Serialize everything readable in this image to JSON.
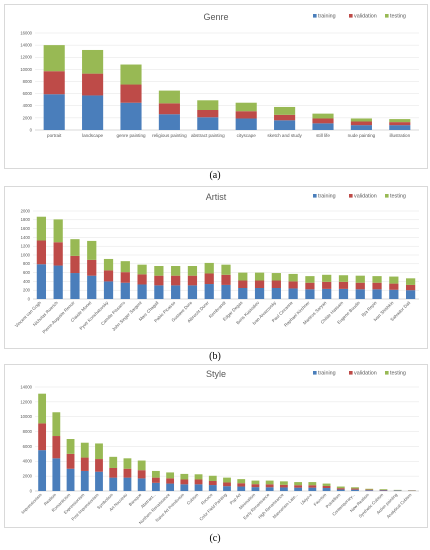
{
  "captions": {
    "a": "(a)",
    "b": "(b)",
    "c": "(c)"
  },
  "colors": {
    "training": "#4a7ebb",
    "validation": "#be4b48",
    "testing": "#98b954",
    "grid": "#e3e3e3",
    "text": "#595959"
  },
  "chart_data": [
    {
      "type": "bar",
      "stacked": true,
      "title": "Genre",
      "legend": "top-right",
      "grid": true,
      "ylim": [
        0,
        16000
      ],
      "yticks": [
        0,
        2000,
        4000,
        6000,
        8000,
        10000,
        12000,
        14000,
        16000
      ],
      "categories": [
        "portrait",
        "landscape",
        "genre painting",
        "religious painting",
        "abstract painting",
        "cityscape",
        "sketch and study",
        "still life",
        "nude painting",
        "illustration"
      ],
      "series": [
        {
          "name": "training",
          "values": [
            5900,
            5700,
            4500,
            2600,
            2100,
            1900,
            1600,
            1100,
            800,
            800
          ]
        },
        {
          "name": "validation",
          "values": [
            3800,
            3600,
            3000,
            1800,
            1200,
            1200,
            900,
            800,
            600,
            500
          ]
        },
        {
          "name": "testing",
          "values": [
            4300,
            3900,
            3300,
            2100,
            1600,
            1400,
            1300,
            800,
            500,
            500
          ]
        }
      ]
    },
    {
      "type": "bar",
      "stacked": true,
      "title": "Artist",
      "legend": "top-right",
      "grid": true,
      "ylim": [
        0,
        2000
      ],
      "yticks": [
        0,
        200,
        400,
        600,
        800,
        1000,
        1200,
        1400,
        1600,
        1800,
        2000
      ],
      "categories": [
        "Vincent van Gogh",
        "Nicholas Roerich",
        "Pierre-Auguste Renoir",
        "Claude Monet",
        "Pyotr Konchalovsky",
        "Camille Pissarro",
        "John Singer Sargent",
        "Marc Chagall",
        "Pablo Picasso",
        "Gustave Dore",
        "Albrecht Durer",
        "Rembrandt",
        "Edgar Degas",
        "Boris Kustodiev",
        "Ivan Aivazovsky",
        "Paul Cezanne",
        "Raphael Kirchner",
        "Martiros Saryan",
        "Childe Hassam",
        "Eugene Boudin",
        "Ilya Repin",
        "Ivan Shishkin",
        "Salvador Dali"
      ],
      "series": [
        {
          "name": "training",
          "values": [
            790,
            760,
            590,
            530,
            400,
            370,
            330,
            310,
            310,
            310,
            340,
            320,
            250,
            250,
            250,
            240,
            220,
            230,
            230,
            220,
            220,
            210,
            200
          ]
        },
        {
          "name": "validation",
          "values": [
            540,
            530,
            390,
            360,
            250,
            240,
            230,
            220,
            220,
            220,
            240,
            230,
            170,
            170,
            170,
            160,
            150,
            160,
            160,
            150,
            150,
            140,
            120
          ]
        },
        {
          "name": "testing",
          "values": [
            540,
            520,
            380,
            430,
            260,
            250,
            220,
            220,
            220,
            220,
            240,
            230,
            180,
            180,
            170,
            170,
            150,
            160,
            150,
            160,
            150,
            160,
            150
          ]
        }
      ]
    },
    {
      "type": "bar",
      "stacked": true,
      "title": "Style",
      "legend": "top-right",
      "grid": true,
      "ylim": [
        0,
        14000
      ],
      "yticks": [
        0,
        2000,
        4000,
        6000,
        8000,
        10000,
        12000,
        14000
      ],
      "categories": [
        "Impressionism",
        "Realism",
        "Romanticism",
        "Expressionism",
        "Post Impressionism",
        "Symbolism",
        "Art Nouveau",
        "Baroque",
        "Abstract...",
        "Northern Renaissance",
        "Naive Art Primitivism",
        "Cubism",
        "Rococo",
        "Color Field Painting",
        "Pop Art",
        "Minimalism",
        "Early Renaissance",
        "High Renaissance",
        "Mannerism Late...",
        "Ukiyo-e",
        "Fauvism",
        "Pointillism",
        "Contemporary...",
        "New Realism",
        "Synthetic Cubism",
        "Action painting",
        "Analytical Cubism"
      ],
      "series": [
        {
          "name": "training",
          "values": [
            5500,
            4400,
            3000,
            2700,
            2600,
            1800,
            1800,
            1700,
            1100,
            1000,
            900,
            900,
            800,
            650,
            600,
            520,
            500,
            480,
            450,
            450,
            400,
            200,
            180,
            100,
            80,
            60,
            40
          ]
        },
        {
          "name": "validation",
          "values": [
            3600,
            3000,
            2000,
            1800,
            1700,
            1300,
            1200,
            1100,
            700,
            700,
            650,
            650,
            550,
            500,
            450,
            400,
            400,
            350,
            330,
            330,
            280,
            180,
            150,
            90,
            70,
            40,
            30
          ]
        },
        {
          "name": "testing",
          "values": [
            4000,
            3200,
            2000,
            2000,
            2100,
            1500,
            1400,
            1300,
            900,
            800,
            750,
            700,
            700,
            650,
            550,
            480,
            500,
            470,
            420,
            420,
            320,
            220,
            170,
            110,
            100,
            50,
            30
          ]
        }
      ]
    }
  ]
}
